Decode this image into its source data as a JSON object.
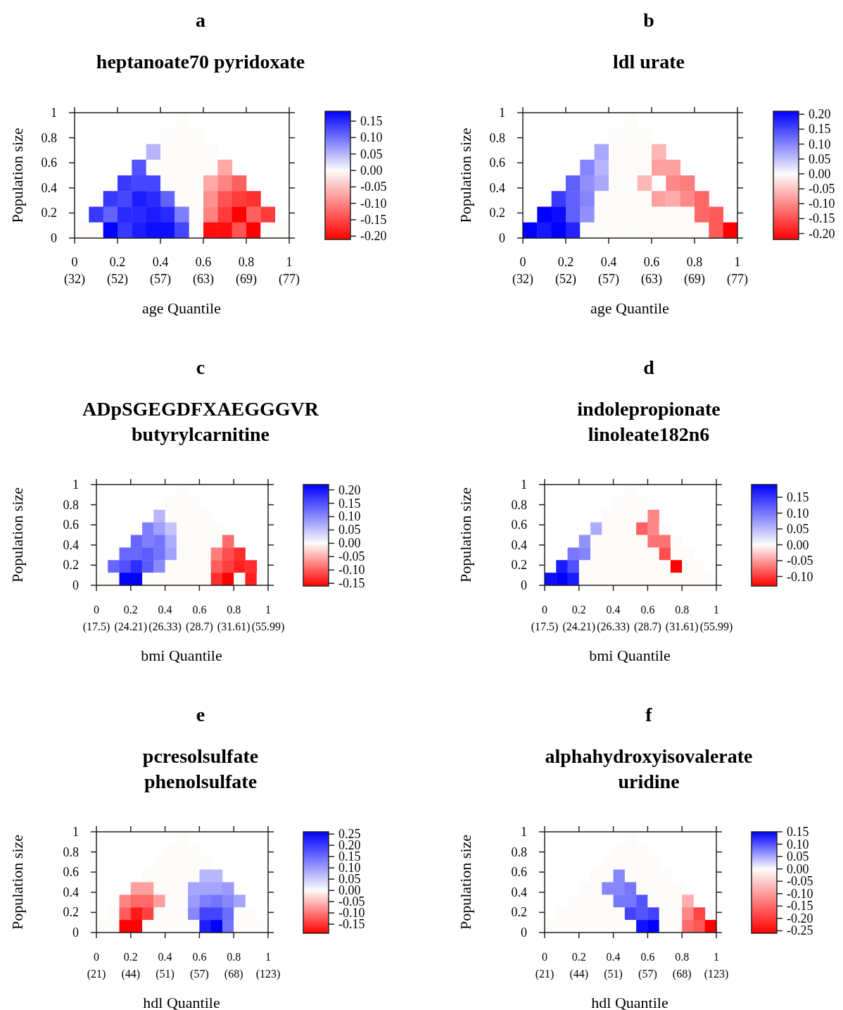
{
  "chart_data": [
    {
      "type": "heatmap",
      "title": "a",
      "subtitle": "heptanoate70 pyridoxate",
      "xlabel": "age Quantile",
      "ylabel": "Population size",
      "xlim": [
        0,
        1
      ],
      "ylim": [
        0,
        1
      ],
      "xticks": [
        0,
        0.2,
        0.4,
        0.6,
        0.8,
        1
      ],
      "annotations": [
        "(32)",
        "(52)",
        "(57)",
        "(63)",
        "(69)",
        "(77)"
      ],
      "yticks": [
        0,
        0.2,
        0.4,
        0.6,
        0.8,
        1
      ],
      "clim": [
        -0.21,
        0.18
      ],
      "cticks": [
        {
          "value": 0.15,
          "label": "0.15"
        },
        {
          "value": 0.1,
          "label": "0.10"
        },
        {
          "value": 0.05,
          "label": "0.05"
        },
        {
          "value": 0,
          "label": "0.00"
        },
        {
          "value": -0.05,
          "label": "-0.05"
        },
        {
          "value": -0.1,
          "label": "-0.10"
        },
        {
          "value": -0.15,
          "label": "-0.15"
        },
        {
          "value": -0.2,
          "label": "-0.20"
        }
      ],
      "cells": [
        [
          null,
          null,
          null,
          null,
          null,
          null,
          null,
          0,
          null,
          null,
          null,
          null,
          null,
          null,
          null
        ],
        [
          null,
          null,
          null,
          null,
          null,
          null,
          0,
          0,
          0,
          null,
          null,
          null,
          null,
          null,
          null
        ],
        [
          null,
          null,
          null,
          null,
          null,
          0.05,
          0,
          0,
          0,
          0,
          null,
          null,
          null,
          null,
          null
        ],
        [
          null,
          null,
          null,
          null,
          0.12,
          0,
          0,
          0,
          0,
          0,
          -0.07,
          null,
          null,
          null,
          null
        ],
        [
          null,
          null,
          null,
          0.14,
          0.13,
          0.13,
          0,
          0,
          0,
          -0.07,
          -0.1,
          -0.13,
          null,
          null,
          null
        ],
        [
          null,
          null,
          0.14,
          0.13,
          0.16,
          0.15,
          0.11,
          0,
          0,
          -0.09,
          -0.14,
          -0.16,
          -0.17,
          null,
          null
        ],
        [
          null,
          0.14,
          0.11,
          0.15,
          0.15,
          0.16,
          0.15,
          0.09,
          0,
          -0.1,
          -0.16,
          -0.21,
          -0.13,
          -0.16,
          null
        ],
        [
          0,
          0,
          0.18,
          0.14,
          0.16,
          0.17,
          0.17,
          0.13,
          0,
          -0.2,
          -0.2,
          -0.14,
          -0.21,
          0,
          0
        ]
      ]
    },
    {
      "type": "heatmap",
      "title": "b",
      "subtitle": "ldl urate",
      "xlabel": "age Quantile",
      "ylabel": "Population size",
      "xlim": [
        0,
        1
      ],
      "ylim": [
        0,
        1
      ],
      "xticks": [
        0,
        0.2,
        0.4,
        0.6,
        0.8,
        1
      ],
      "annotations": [
        "(32)",
        "(52)",
        "(57)",
        "(63)",
        "(69)",
        "(77)"
      ],
      "yticks": [
        0,
        0.2,
        0.4,
        0.6,
        0.8,
        1
      ],
      "clim": [
        -0.22,
        0.21
      ],
      "cticks": [
        {
          "value": 0.2,
          "label": "0.20"
        },
        {
          "value": 0.15,
          "label": "0.15"
        },
        {
          "value": 0.1,
          "label": "0.10"
        },
        {
          "value": 0.05,
          "label": "0.05"
        },
        {
          "value": 0,
          "label": "0.00"
        },
        {
          "value": -0.05,
          "label": "-0.05"
        },
        {
          "value": -0.1,
          "label": "-0.10"
        },
        {
          "value": -0.15,
          "label": "-0.15"
        },
        {
          "value": -0.2,
          "label": "-0.20"
        }
      ],
      "cells": [
        [
          null,
          null,
          null,
          null,
          null,
          null,
          null,
          0,
          null,
          null,
          null,
          null,
          null,
          null,
          null
        ],
        [
          null,
          null,
          null,
          null,
          null,
          null,
          0,
          0,
          0,
          null,
          null,
          null,
          null,
          null,
          null
        ],
        [
          null,
          null,
          null,
          null,
          null,
          0.07,
          0,
          0,
          0,
          -0.06,
          null,
          null,
          null,
          null,
          null
        ],
        [
          null,
          null,
          null,
          null,
          0.1,
          0.06,
          0,
          0,
          0,
          -0.08,
          -0.08,
          null,
          null,
          null,
          null
        ],
        [
          null,
          null,
          null,
          0.13,
          0.09,
          0.07,
          0,
          0,
          -0.06,
          null,
          -0.1,
          -0.11,
          null,
          null,
          null
        ],
        [
          null,
          null,
          0.16,
          0.13,
          0.1,
          0,
          0,
          0,
          0,
          -0.08,
          -0.07,
          -0.1,
          -0.13,
          null,
          null
        ],
        [
          null,
          0.21,
          0.2,
          0.13,
          0.09,
          0,
          0,
          0,
          0,
          0,
          0,
          0,
          -0.13,
          -0.14,
          null
        ],
        [
          0.21,
          0.19,
          0.21,
          0.18,
          0,
          0,
          0,
          0,
          0,
          0,
          0,
          0,
          0,
          -0.14,
          -0.22
        ]
      ]
    },
    {
      "type": "heatmap",
      "title": "c",
      "subtitle": "ADpSGEGDFXAEGGGVR\nbutyrylcarnitine",
      "xlabel": "bmi Quantile",
      "ylabel": "Population size",
      "xlim": [
        0,
        1
      ],
      "ylim": [
        0,
        1
      ],
      "xticks": [
        0,
        0.2,
        0.4,
        0.6,
        0.8,
        1
      ],
      "annotations": [
        "(17.5)",
        "(24.21)",
        "(26.33)",
        "(28.7)",
        "(31.61)",
        "(55.99)"
      ],
      "yticks": [
        0,
        0.2,
        0.4,
        0.6,
        0.8,
        1
      ],
      "clim": [
        -0.16,
        0.22
      ],
      "cticks": [
        {
          "value": 0.2,
          "label": "0.20"
        },
        {
          "value": 0.15,
          "label": "0.15"
        },
        {
          "value": 0.1,
          "label": "0.10"
        },
        {
          "value": 0.05,
          "label": "0.05"
        },
        {
          "value": 0,
          "label": "0.00"
        },
        {
          "value": -0.05,
          "label": "-0.05"
        },
        {
          "value": -0.1,
          "label": "-0.10"
        },
        {
          "value": -0.15,
          "label": "-0.15"
        }
      ],
      "cells": [
        [
          null,
          null,
          null,
          null,
          null,
          null,
          null,
          0,
          null,
          null,
          null,
          null,
          null,
          null,
          null
        ],
        [
          null,
          null,
          null,
          null,
          null,
          null,
          0,
          0,
          0,
          null,
          null,
          null,
          null,
          null,
          null
        ],
        [
          null,
          null,
          null,
          null,
          null,
          0.06,
          0,
          0,
          0,
          0,
          null,
          null,
          null,
          null,
          null
        ],
        [
          null,
          null,
          null,
          null,
          0.11,
          0.08,
          0.05,
          0,
          0,
          0,
          0,
          null,
          null,
          null,
          null
        ],
        [
          null,
          null,
          null,
          0.13,
          0.11,
          0.12,
          0.07,
          0,
          0,
          0,
          0,
          -0.09,
          null,
          null,
          null
        ],
        [
          null,
          null,
          0.13,
          0.13,
          0.14,
          0.12,
          0.08,
          0,
          0,
          0,
          -0.08,
          -0.11,
          -0.13,
          null,
          null
        ],
        [
          null,
          0.13,
          0.15,
          0.18,
          0.14,
          0.1,
          0,
          0,
          0,
          0,
          -0.1,
          -0.12,
          -0.14,
          -0.13,
          null
        ],
        [
          0,
          0,
          0.22,
          0.22,
          0,
          0,
          0,
          0,
          0,
          0,
          -0.13,
          -0.16,
          0,
          -0.14,
          0
        ]
      ]
    },
    {
      "type": "heatmap",
      "title": "d",
      "subtitle": "indolepropionate\nlinoleate182n6",
      "xlabel": "bmi Quantile",
      "ylabel": "Population size",
      "xlim": [
        0,
        1
      ],
      "ylim": [
        0,
        1
      ],
      "xticks": [
        0,
        0.2,
        0.4,
        0.6,
        0.8,
        1
      ],
      "annotations": [
        "(17.5)",
        "(24.21)",
        "(26.33)",
        "(28.7)",
        "(31.61)",
        "(55.99)"
      ],
      "yticks": [
        0,
        0.2,
        0.4,
        0.6,
        0.8,
        1
      ],
      "clim": [
        -0.13,
        0.19
      ],
      "cticks": [
        {
          "value": 0.15,
          "label": "0.15"
        },
        {
          "value": 0.1,
          "label": "0.10"
        },
        {
          "value": 0.05,
          "label": "0.05"
        },
        {
          "value": 0,
          "label": "0.00"
        },
        {
          "value": -0.05,
          "label": "-0.05"
        },
        {
          "value": -0.1,
          "label": "-0.10"
        }
      ],
      "cells": [
        [
          null,
          null,
          null,
          null,
          null,
          null,
          null,
          0,
          null,
          null,
          null,
          null,
          null,
          null,
          null
        ],
        [
          null,
          null,
          null,
          null,
          null,
          null,
          0,
          0,
          0,
          null,
          null,
          null,
          null,
          null,
          null
        ],
        [
          null,
          null,
          null,
          null,
          null,
          0,
          0,
          0,
          0,
          -0.06,
          null,
          null,
          null,
          null,
          null
        ],
        [
          null,
          null,
          null,
          null,
          0.06,
          0,
          0,
          0,
          -0.08,
          -0.06,
          0,
          null,
          null,
          null,
          null
        ],
        [
          null,
          null,
          null,
          0.08,
          0,
          0,
          0,
          0,
          0,
          -0.07,
          -0.07,
          0,
          null,
          null,
          null
        ],
        [
          null,
          null,
          0.1,
          0.09,
          0,
          0,
          0,
          0,
          0,
          0,
          -0.09,
          0,
          0,
          null,
          null
        ],
        [
          null,
          0.17,
          0.13,
          0,
          0,
          0,
          0,
          0,
          0,
          0,
          0,
          -0.13,
          0,
          0,
          null
        ],
        [
          0.18,
          0.19,
          0.17,
          0,
          0,
          0,
          0,
          0,
          0,
          0,
          0,
          0,
          0,
          0,
          0
        ]
      ]
    },
    {
      "type": "heatmap",
      "title": "e",
      "subtitle": "pcresolsulfate\nphenolsulfate",
      "xlabel": "hdl Quantile",
      "ylabel": "Population size",
      "xlim": [
        0,
        1
      ],
      "ylim": [
        0,
        1
      ],
      "xticks": [
        0,
        0.2,
        0.4,
        0.6,
        0.8,
        1
      ],
      "annotations": [
        "(21)",
        "(44)",
        "(51)",
        "(57)",
        "(68)",
        "(123)"
      ],
      "yticks": [
        0,
        0.2,
        0.4,
        0.6,
        0.8,
        1
      ],
      "clim": [
        -0.19,
        0.26
      ],
      "cticks": [
        {
          "value": 0.25,
          "label": "0.25"
        },
        {
          "value": 0.2,
          "label": "0.20"
        },
        {
          "value": 0.15,
          "label": "0.15"
        },
        {
          "value": 0.1,
          "label": "0.10"
        },
        {
          "value": 0.05,
          "label": "0.05"
        },
        {
          "value": 0,
          "label": "0.00"
        },
        {
          "value": -0.05,
          "label": "-0.05"
        },
        {
          "value": -0.1,
          "label": "-0.10"
        },
        {
          "value": -0.15,
          "label": "-0.15"
        }
      ],
      "cells": [
        [
          null,
          null,
          null,
          null,
          null,
          null,
          null,
          0,
          null,
          null,
          null,
          null,
          null,
          null,
          null
        ],
        [
          null,
          null,
          null,
          null,
          null,
          null,
          0,
          0,
          0,
          null,
          null,
          null,
          null,
          null,
          null
        ],
        [
          null,
          null,
          null,
          null,
          null,
          0,
          0,
          0,
          0,
          0,
          null,
          null,
          null,
          null,
          null
        ],
        [
          null,
          null,
          null,
          null,
          0,
          0,
          0,
          0,
          0,
          0.07,
          0.07,
          null,
          null,
          null,
          null
        ],
        [
          null,
          null,
          null,
          -0.07,
          -0.07,
          0,
          0,
          0,
          0.09,
          0.09,
          0.09,
          0.1,
          null,
          null,
          null
        ],
        [
          null,
          null,
          -0.09,
          -0.11,
          -0.11,
          -0.07,
          0,
          0,
          0.1,
          0.13,
          0.14,
          0.12,
          0.09,
          null,
          null
        ],
        [
          null,
          0,
          -0.12,
          -0.17,
          -0.14,
          0,
          0,
          0,
          0.12,
          0.19,
          0.19,
          0.15,
          0,
          0,
          null
        ],
        [
          0,
          0,
          -0.19,
          -0.19,
          0,
          0,
          0,
          0,
          0,
          0.23,
          0.26,
          0.14,
          0,
          0,
          0
        ]
      ]
    },
    {
      "type": "heatmap",
      "title": "f",
      "subtitle": "alphahydroxyisovalerate\nuridine",
      "xlabel": "hdl Quantile",
      "ylabel": "Population size",
      "xlim": [
        0,
        1
      ],
      "ylim": [
        0,
        1
      ],
      "xticks": [
        0,
        0.2,
        0.4,
        0.6,
        0.8,
        1
      ],
      "annotations": [
        "(21)",
        "(44)",
        "(51)",
        "(57)",
        "(68)",
        "(123)"
      ],
      "yticks": [
        0,
        0.2,
        0.4,
        0.6,
        0.8,
        1
      ],
      "clim": [
        -0.26,
        0.15
      ],
      "cticks": [
        {
          "value": 0.15,
          "label": "0.15"
        },
        {
          "value": 0.1,
          "label": "0.10"
        },
        {
          "value": 0.05,
          "label": "0.05"
        },
        {
          "value": 0,
          "label": "0.00"
        },
        {
          "value": -0.05,
          "label": "-0.05"
        },
        {
          "value": -0.1,
          "label": "-0.10"
        },
        {
          "value": -0.15,
          "label": "-0.15"
        },
        {
          "value": -0.2,
          "label": "-0.20"
        },
        {
          "value": -0.25,
          "label": "-0.25"
        }
      ],
      "cells": [
        [
          null,
          null,
          null,
          null,
          null,
          null,
          null,
          0,
          null,
          null,
          null,
          null,
          null,
          null,
          null
        ],
        [
          null,
          null,
          null,
          null,
          null,
          null,
          0,
          0,
          0,
          null,
          null,
          null,
          null,
          null,
          null
        ],
        [
          null,
          null,
          null,
          null,
          null,
          0,
          0,
          0,
          0,
          0,
          null,
          null,
          null,
          null,
          null
        ],
        [
          null,
          null,
          null,
          null,
          0,
          0,
          0.07,
          0,
          0,
          0,
          0,
          null,
          null,
          null,
          null
        ],
        [
          null,
          null,
          null,
          0,
          0,
          0.07,
          0.07,
          0.08,
          0,
          0,
          0,
          0,
          null,
          null,
          null
        ],
        [
          null,
          null,
          0,
          0,
          0,
          0,
          0.08,
          0.08,
          0.1,
          0,
          0,
          0,
          -0.08,
          null,
          null
        ],
        [
          null,
          0,
          0,
          0,
          0,
          0,
          0,
          0.11,
          0.1,
          0.11,
          0,
          0,
          -0.12,
          -0.19,
          null
        ],
        [
          0,
          0,
          0,
          0,
          0,
          0,
          0,
          0,
          0.14,
          0.15,
          0,
          0,
          -0.15,
          -0.17,
          -0.26
        ]
      ]
    }
  ]
}
